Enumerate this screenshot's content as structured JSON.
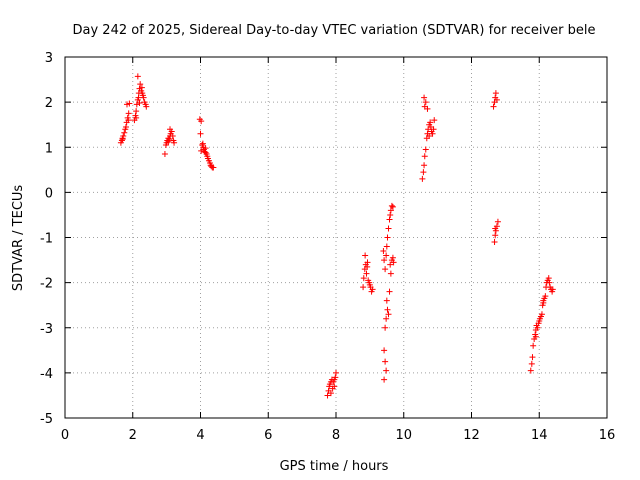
{
  "chart_data": {
    "type": "scatter",
    "title": "Day 242 of 2025, Sidereal Day-to-day VTEC variation (SDTVAR) for receiver bele",
    "xlabel": "GPS time / hours",
    "ylabel": "SDTVAR / TECUs",
    "xlim": [
      0,
      16
    ],
    "ylim": [
      -5,
      3
    ],
    "xticks": [
      0,
      2,
      4,
      6,
      8,
      10,
      12,
      14,
      16
    ],
    "yticks": [
      -5,
      -4,
      -3,
      -2,
      -1,
      0,
      1,
      2,
      3
    ],
    "grid": true,
    "marker": "+",
    "colors": {
      "series": "#ff0000",
      "grid": "#a0a0a0",
      "axis": "#000000"
    },
    "series": [
      {
        "name": "SDTVAR",
        "points": [
          [
            1.65,
            1.1
          ],
          [
            1.68,
            1.15
          ],
          [
            1.7,
            1.2
          ],
          [
            1.72,
            1.25
          ],
          [
            1.75,
            1.32
          ],
          [
            1.78,
            1.4
          ],
          [
            1.8,
            1.45
          ],
          [
            1.82,
            1.55
          ],
          [
            1.85,
            1.65
          ],
          [
            1.88,
            1.75
          ],
          [
            1.83,
            1.95
          ],
          [
            1.9,
            1.97
          ],
          [
            1.87,
            1.6
          ],
          [
            1.7,
            1.18
          ],
          [
            2.05,
            1.6
          ],
          [
            2.08,
            1.7
          ],
          [
            2.1,
            1.8
          ],
          [
            2.12,
            1.95
          ],
          [
            2.15,
            2.05
          ],
          [
            2.17,
            2.1
          ],
          [
            2.18,
            2.2
          ],
          [
            2.2,
            2.3
          ],
          [
            2.22,
            2.4
          ],
          [
            2.15,
            2.57
          ],
          [
            2.25,
            2.25
          ],
          [
            2.28,
            2.2
          ],
          [
            2.3,
            2.15
          ],
          [
            2.32,
            2.1
          ],
          [
            2.35,
            2.0
          ],
          [
            2.38,
            1.95
          ],
          [
            2.4,
            1.9
          ],
          [
            2.1,
            1.65
          ],
          [
            2.2,
            1.98
          ],
          [
            2.27,
            2.32
          ],
          [
            2.95,
            0.85
          ],
          [
            2.98,
            1.05
          ],
          [
            3.0,
            1.1
          ],
          [
            3.02,
            1.15
          ],
          [
            3.05,
            1.2
          ],
          [
            3.08,
            1.18
          ],
          [
            3.1,
            1.25
          ],
          [
            3.12,
            1.3
          ],
          [
            3.15,
            1.35
          ],
          [
            3.18,
            1.25
          ],
          [
            3.2,
            1.15
          ],
          [
            3.22,
            1.1
          ],
          [
            3.1,
            1.4
          ],
          [
            3.05,
            1.12
          ],
          [
            3.98,
            1.62
          ],
          [
            4.02,
            1.58
          ],
          [
            4.0,
            1.3
          ],
          [
            4.05,
            1.05
          ],
          [
            4.08,
            1.0
          ],
          [
            4.1,
            0.95
          ],
          [
            4.12,
            0.9
          ],
          [
            4.15,
            0.88
          ],
          [
            4.18,
            0.85
          ],
          [
            4.2,
            0.8
          ],
          [
            4.22,
            0.75
          ],
          [
            4.25,
            0.7
          ],
          [
            4.28,
            0.65
          ],
          [
            4.3,
            0.6
          ],
          [
            4.32,
            0.58
          ],
          [
            4.35,
            0.55
          ],
          [
            4.38,
            0.55
          ],
          [
            4.02,
            0.92
          ],
          [
            4.15,
            0.98
          ],
          [
            4.07,
            1.08
          ],
          [
            7.75,
            -4.5
          ],
          [
            7.78,
            -4.4
          ],
          [
            7.8,
            -4.3
          ],
          [
            7.82,
            -4.25
          ],
          [
            7.85,
            -4.2
          ],
          [
            7.88,
            -4.15
          ],
          [
            7.9,
            -4.35
          ],
          [
            7.92,
            -4.2
          ],
          [
            7.95,
            -4.15
          ],
          [
            7.98,
            -4.1
          ],
          [
            8.0,
            -4.0
          ],
          [
            7.85,
            -4.45
          ],
          [
            7.95,
            -4.3
          ],
          [
            8.8,
            -2.1
          ],
          [
            8.82,
            -1.9
          ],
          [
            8.85,
            -1.7
          ],
          [
            8.88,
            -1.6
          ],
          [
            8.9,
            -1.8
          ],
          [
            8.92,
            -1.65
          ],
          [
            8.95,
            -1.95
          ],
          [
            8.98,
            -2.0
          ],
          [
            9.0,
            -2.05
          ],
          [
            9.02,
            -2.1
          ],
          [
            9.05,
            -2.2
          ],
          [
            9.08,
            -2.15
          ],
          [
            8.86,
            -1.4
          ],
          [
            8.93,
            -1.55
          ],
          [
            9.4,
            -1.3
          ],
          [
            9.42,
            -1.5
          ],
          [
            9.45,
            -1.7
          ],
          [
            9.48,
            -1.4
          ],
          [
            9.5,
            -1.2
          ],
          [
            9.52,
            -1.0
          ],
          [
            9.55,
            -0.8
          ],
          [
            9.58,
            -0.6
          ],
          [
            9.6,
            -0.5
          ],
          [
            9.62,
            -0.4
          ],
          [
            9.65,
            -0.3
          ],
          [
            9.68,
            -0.32
          ],
          [
            9.5,
            -2.4
          ],
          [
            9.52,
            -2.6
          ],
          [
            9.55,
            -2.7
          ],
          [
            9.48,
            -2.8
          ],
          [
            9.45,
            -3.0
          ],
          [
            9.42,
            -3.5
          ],
          [
            9.45,
            -3.75
          ],
          [
            9.48,
            -3.95
          ],
          [
            9.42,
            -4.15
          ],
          [
            9.6,
            -1.6
          ],
          [
            9.62,
            -1.8
          ],
          [
            9.65,
            -1.5
          ],
          [
            9.68,
            -1.45
          ],
          [
            9.7,
            -1.55
          ],
          [
            9.58,
            -2.2
          ],
          [
            10.55,
            0.3
          ],
          [
            10.58,
            0.45
          ],
          [
            10.6,
            0.6
          ],
          [
            10.62,
            0.8
          ],
          [
            10.65,
            0.95
          ],
          [
            10.68,
            1.2
          ],
          [
            10.7,
            1.3
          ],
          [
            10.72,
            1.4
          ],
          [
            10.75,
            1.5
          ],
          [
            10.78,
            1.55
          ],
          [
            10.8,
            1.45
          ],
          [
            10.82,
            1.35
          ],
          [
            10.85,
            1.3
          ],
          [
            10.88,
            1.4
          ],
          [
            10.9,
            1.6
          ],
          [
            10.62,
            1.9
          ],
          [
            10.65,
            2.0
          ],
          [
            10.6,
            2.1
          ],
          [
            10.7,
            1.85
          ],
          [
            10.75,
            1.25
          ],
          [
            12.65,
            1.9
          ],
          [
            12.68,
            2.0
          ],
          [
            12.7,
            2.1
          ],
          [
            12.72,
            2.2
          ],
          [
            12.75,
            2.05
          ],
          [
            12.68,
            -1.1
          ],
          [
            12.7,
            -0.95
          ],
          [
            12.72,
            -0.85
          ],
          [
            12.75,
            -0.75
          ],
          [
            12.78,
            -0.65
          ],
          [
            12.7,
            -0.8
          ],
          [
            13.75,
            -3.95
          ],
          [
            13.78,
            -3.8
          ],
          [
            13.8,
            -3.65
          ],
          [
            13.82,
            -3.4
          ],
          [
            13.85,
            -3.25
          ],
          [
            13.88,
            -3.15
          ],
          [
            13.9,
            -3.05
          ],
          [
            13.92,
            -2.95
          ],
          [
            13.95,
            -3.0
          ],
          [
            13.98,
            -2.9
          ],
          [
            14.0,
            -2.85
          ],
          [
            14.02,
            -2.8
          ],
          [
            14.05,
            -2.75
          ],
          [
            14.08,
            -2.7
          ],
          [
            14.1,
            -2.5
          ],
          [
            14.12,
            -2.4
          ],
          [
            14.15,
            -2.35
          ],
          [
            14.18,
            -2.3
          ],
          [
            14.2,
            -2.1
          ],
          [
            14.22,
            -2.0
          ],
          [
            14.25,
            -1.95
          ],
          [
            14.28,
            -1.9
          ],
          [
            14.3,
            -2.0
          ],
          [
            14.32,
            -2.1
          ],
          [
            14.35,
            -2.15
          ],
          [
            14.38,
            -2.2
          ],
          [
            14.4,
            -2.15
          ],
          [
            13.9,
            -3.2
          ],
          [
            14.12,
            -2.45
          ]
        ]
      }
    ]
  }
}
